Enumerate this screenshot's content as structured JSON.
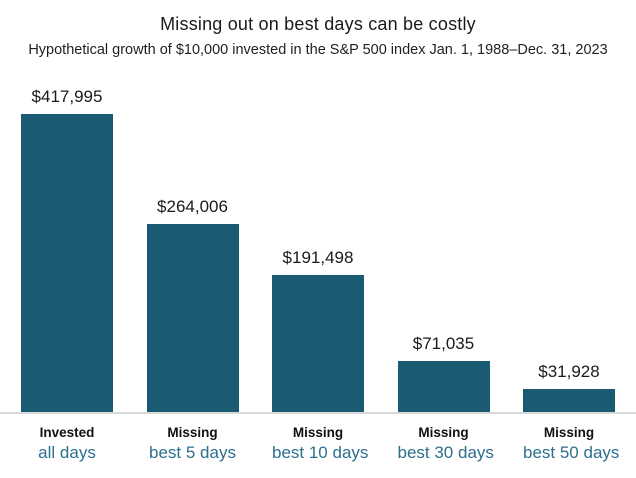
{
  "page": {
    "title": "Missing out on best days can be costly",
    "subtitle": "Hypothetical growth of $10,000 invested in the S&P 500 index Jan. 1, 1988–Dec. 31, 2023"
  },
  "colors": {
    "bar_fill": "#1b5a73",
    "category_teal_text": "#2c6f8e",
    "value_label_text": "#1a1a1a",
    "axis_line": "#d9d9d9",
    "background": "#ffffff"
  },
  "chart_data": {
    "type": "bar",
    "title": "Missing out on best days can be costly",
    "subtitle": "Hypothetical growth of $10,000 invested in the S&P 500 index Jan. 1, 1988–Dec. 31, 2023",
    "categories": [
      {
        "line1": "Invested",
        "line2": "all days"
      },
      {
        "line1": "Missing",
        "line2": "best 5 days"
      },
      {
        "line1": "Missing",
        "line2": "best 10 days"
      },
      {
        "line1": "Missing",
        "line2": "best 30 days"
      },
      {
        "line1": "Missing",
        "line2": "best 50 days"
      }
    ],
    "values": [
      417995,
      264006,
      191498,
      71035,
      31928
    ],
    "value_labels": [
      "$417,995",
      "$264,006",
      "$191,498",
      "$71,035",
      "$31,928"
    ],
    "xlabel": "",
    "ylabel": "",
    "ylim": [
      0,
      440000
    ],
    "grid": false,
    "legend": false,
    "y_axis_visible": false,
    "baseline_visible": true
  }
}
